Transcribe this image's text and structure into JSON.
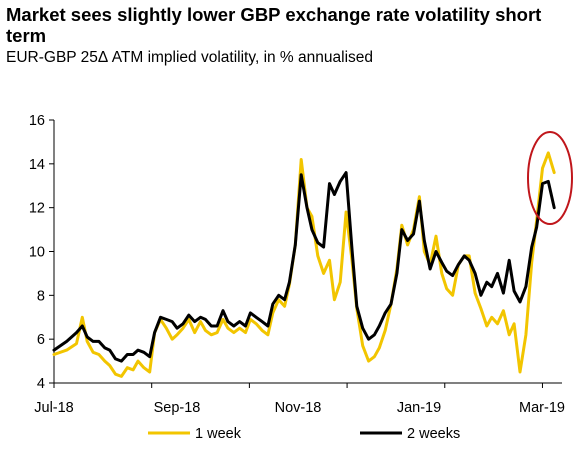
{
  "chart_data": {
    "type": "line",
    "title": "Market sees slightly lower GBP exchange rate volatility short term",
    "subtitle": "EUR-GBP 25Δ ATM implied volatility, in % annualised",
    "xlabel": "",
    "ylabel": "",
    "ylim": [
      4,
      16
    ],
    "yticks": [
      "4",
      "6",
      "8",
      "10",
      "12",
      "14",
      "16"
    ],
    "xticks": [
      "Jul-18",
      "Sep-18",
      "Nov-18",
      "Jan-19",
      "Mar-19"
    ],
    "grid": false,
    "legend_position": "bottom",
    "annotation": "red ellipse highlighting latest values (Mar-19)",
    "series": [
      {
        "name": "1 week",
        "color": "#F2C500",
        "x": [
          0.0,
          1.3,
          2.3,
          2.9,
          3.4,
          4.0,
          4.6,
          5.2,
          5.7,
          6.3,
          6.9,
          7.5,
          8.1,
          8.6,
          9.2,
          9.8,
          10.3,
          10.9,
          11.5,
          12.1,
          12.6,
          13.2,
          13.8,
          14.4,
          15.0,
          15.5,
          16.1,
          16.7,
          17.3,
          17.8,
          18.4,
          19.0,
          19.6,
          20.1,
          20.7,
          21.3,
          21.9,
          22.4,
          23.0,
          23.6,
          24.1,
          24.7,
          25.3,
          25.9,
          26.4,
          27.0,
          27.6,
          28.2,
          28.7,
          29.3,
          29.9,
          30.5,
          31.0,
          31.6,
          32.2,
          32.8,
          33.3,
          33.9,
          34.5,
          35.1,
          35.6,
          36.2,
          36.8,
          37.4,
          37.9
        ],
        "values": [
          5.3,
          5.5,
          5.8,
          7.0,
          5.9,
          5.4,
          5.3,
          5.0,
          4.8,
          4.4,
          4.3,
          4.7,
          4.6,
          5.0,
          4.7,
          4.5,
          6.3,
          6.9,
          6.5,
          6.0,
          6.2,
          6.5,
          6.9,
          6.3,
          6.8,
          6.4,
          6.2,
          6.3,
          6.9,
          6.5,
          6.3,
          6.5,
          6.3,
          6.9,
          6.7,
          6.4,
          6.2,
          7.2,
          7.8,
          7.5,
          8.5,
          10.3,
          14.2,
          12.0,
          11.6,
          9.8,
          9.0,
          9.6,
          7.8,
          8.6,
          11.8,
          9.6,
          7.4,
          5.7,
          5.0,
          5.2,
          5.6,
          6.4,
          7.6,
          9.2,
          11.2,
          10.3,
          11.0,
          12.5,
          10.0
        ],
        "x2": [
          38.5,
          39.1,
          39.7,
          40.2,
          40.8,
          41.4,
          42.0,
          42.5,
          43.1,
          43.7,
          44.3,
          44.8,
          45.4,
          46.0,
          46.6,
          47.1,
          47.7,
          48.3,
          48.9,
          49.4,
          50.0,
          50.6,
          51.2
        ],
        "values2": [
          9.4,
          10.7,
          9.0,
          8.3,
          8.0,
          9.4,
          9.8,
          9.8,
          8.1,
          7.4,
          6.6,
          7.0,
          6.7,
          7.3,
          6.2,
          6.7,
          4.5,
          6.2,
          9.5,
          11.4,
          13.8,
          14.5,
          13.6
        ]
      },
      {
        "name": "2 weeks",
        "color": "#000000",
        "x": [
          0.0,
          1.3,
          2.3,
          2.9,
          3.4,
          4.0,
          4.6,
          5.2,
          5.7,
          6.3,
          6.9,
          7.5,
          8.1,
          8.6,
          9.2,
          9.8,
          10.3,
          10.9,
          11.5,
          12.1,
          12.6,
          13.2,
          13.8,
          14.4,
          15.0,
          15.5,
          16.1,
          16.7,
          17.3,
          17.8,
          18.4,
          19.0,
          19.6,
          20.1,
          20.7,
          21.3,
          21.9,
          22.4,
          23.0,
          23.6,
          24.1,
          24.7,
          25.3,
          25.9,
          26.4,
          27.0,
          27.6,
          28.2,
          28.7,
          29.3,
          29.9,
          30.5,
          31.0,
          31.6,
          32.2,
          32.8,
          33.3,
          33.9,
          34.5,
          35.1,
          35.6,
          36.2,
          36.8,
          37.4,
          37.9
        ],
        "values": [
          5.5,
          5.9,
          6.3,
          6.6,
          6.1,
          5.9,
          5.9,
          5.6,
          5.5,
          5.1,
          5.0,
          5.3,
          5.3,
          5.5,
          5.4,
          5.2,
          6.3,
          7.0,
          6.9,
          6.8,
          6.5,
          6.7,
          7.1,
          6.8,
          7.0,
          6.9,
          6.6,
          6.6,
          7.3,
          6.8,
          6.6,
          6.8,
          6.6,
          7.2,
          7.0,
          6.8,
          6.6,
          7.6,
          8.0,
          7.8,
          8.6,
          10.3,
          13.5,
          12.0,
          11.0,
          10.4,
          10.2,
          13.1,
          12.6,
          13.2,
          13.6,
          10.1,
          7.5,
          6.5,
          6.0,
          6.2,
          6.6,
          7.2,
          7.6,
          9.0,
          11.0,
          10.5,
          10.8,
          12.3,
          10.5
        ],
        "x2": [
          38.5,
          39.1,
          39.7,
          40.2,
          40.8,
          41.4,
          42.0,
          42.5,
          43.1,
          43.7,
          44.3,
          44.8,
          45.4,
          46.0,
          46.6,
          47.1,
          47.7,
          48.3,
          48.9,
          49.4,
          50.0,
          50.6,
          51.2
        ],
        "values2": [
          9.2,
          10.0,
          9.5,
          9.1,
          8.9,
          9.4,
          9.8,
          9.6,
          9.0,
          8.0,
          8.6,
          8.4,
          9.0,
          8.1,
          9.6,
          8.2,
          7.7,
          8.4,
          10.2,
          11.1,
          13.1,
          13.2,
          12.0
        ]
      }
    ]
  }
}
